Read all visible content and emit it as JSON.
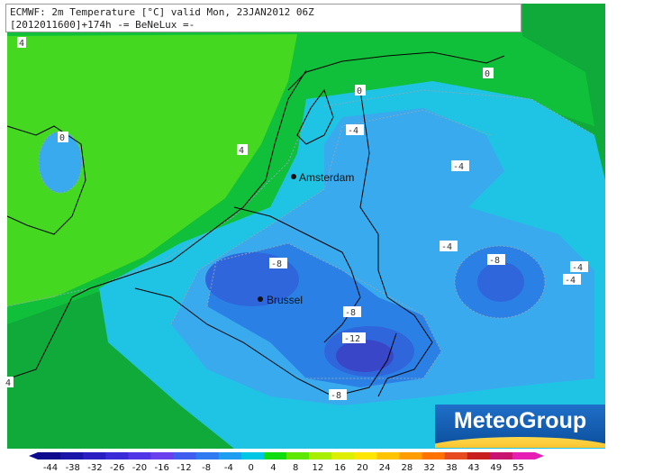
{
  "header": {
    "line1": "ECMWF: 2m Temperature [°C] valid Mon, 23JAN2012 06Z",
    "line2": "[2012011600]+174h  -= BeNeLux =-"
  },
  "logo": {
    "text": "MeteoGroup"
  },
  "cities": [
    {
      "name": "Amsterdam"
    },
    {
      "name": "Brussel"
    }
  ],
  "contour_labels": [
    "4",
    "0",
    "0",
    "0",
    "4",
    "-4",
    "-4",
    "-4",
    "-8",
    "-8",
    "-8",
    "-12",
    "-8",
    "-4",
    "-4",
    "4"
  ],
  "legend": {
    "ticks": [
      "-44",
      "-38",
      "-32",
      "-26",
      "-20",
      "-16",
      "-12",
      "-8",
      "-4",
      "0",
      "4",
      "8",
      "12",
      "16",
      "20",
      "24",
      "28",
      "32",
      "38",
      "43",
      "49",
      "55"
    ],
    "colors": [
      "#0d0a8e",
      "#1a14a8",
      "#2a1ec2",
      "#3a2ad8",
      "#5036e6",
      "#6a40ee",
      "#3f5ef0",
      "#2f7af0",
      "#1e9ef0",
      "#00c6e6",
      "#10dd10",
      "#5ee800",
      "#a8ee00",
      "#ddee00",
      "#ffe600",
      "#ffc400",
      "#ff9c00",
      "#ff7200",
      "#e64a1e",
      "#c81e1e",
      "#c8146e",
      "#e61eb4"
    ]
  }
}
